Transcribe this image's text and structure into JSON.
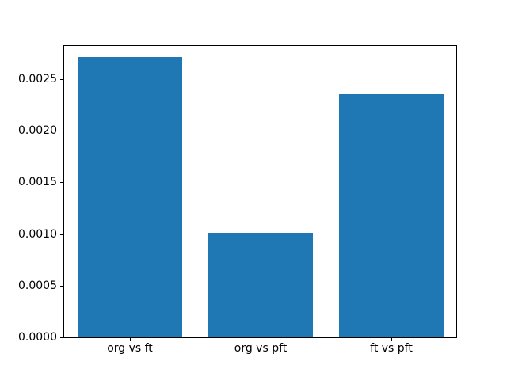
{
  "figure": {
    "background_color": "#ffffff",
    "frame_color": "#000000",
    "text_color": "#000000"
  },
  "chart_data": {
    "type": "bar",
    "title": "",
    "xlabel": "",
    "ylabel": "",
    "categories": [
      "org vs ft",
      "org vs pft",
      "ft vs pft"
    ],
    "values": [
      0.00271,
      0.00101,
      0.00235
    ],
    "ylim": [
      0,
      0.00282
    ],
    "yticks": [
      0.0,
      0.0005,
      0.001,
      0.0015,
      0.002,
      0.0025
    ],
    "ytick_labels": [
      "0.0000",
      "0.0005",
      "0.0010",
      "0.0015",
      "0.0020",
      "0.0025"
    ],
    "bar_color": "#1f77b4",
    "bar_width_fraction": 0.8,
    "grid": false,
    "legend": null
  }
}
